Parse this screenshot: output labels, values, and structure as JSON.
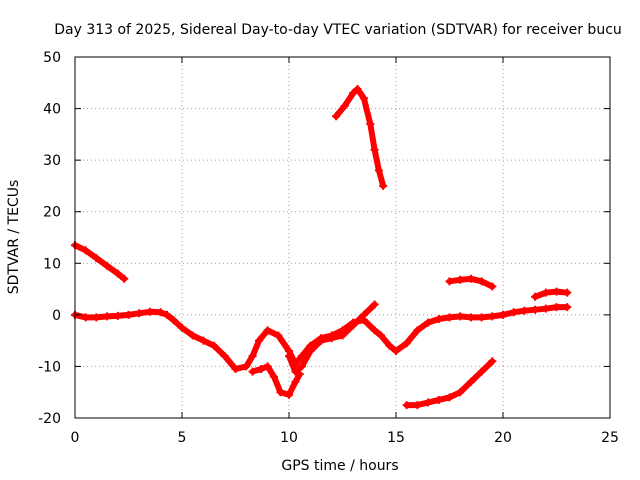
{
  "chart_data": {
    "type": "scatter",
    "title": "Day 313 of 2025, Sidereal Day-to-day VTEC variation (SDTVAR) for receiver bucu",
    "xlabel": "GPS time / hours",
    "ylabel": "SDTVAR / TECUs",
    "xlim": [
      0,
      25
    ],
    "ylim": [
      -20,
      50
    ],
    "xticks": [
      "0",
      "5",
      "10",
      "15",
      "20",
      "25"
    ],
    "yticks": [
      "-20",
      "-10",
      "0",
      "10",
      "20",
      "30",
      "40",
      "50"
    ],
    "grid": true,
    "color": "#ff0000",
    "series": [
      {
        "name": "seg-1",
        "points": [
          [
            0,
            13.5
          ],
          [
            0.5,
            12.5
          ],
          [
            1,
            11
          ],
          [
            1.5,
            9.5
          ],
          [
            2,
            8
          ],
          [
            2.3,
            7
          ]
        ]
      },
      {
        "name": "seg-2",
        "points": [
          [
            0,
            0
          ],
          [
            0.5,
            -0.5
          ],
          [
            1,
            -0.5
          ],
          [
            1.5,
            -0.3
          ],
          [
            2,
            -0.2
          ],
          [
            2.5,
            0
          ],
          [
            3,
            0.3
          ],
          [
            3.5,
            0.6
          ],
          [
            4,
            0.5
          ],
          [
            4.3,
            0
          ],
          [
            4.6,
            -1
          ],
          [
            5,
            -2.5
          ],
          [
            5.5,
            -4
          ],
          [
            6,
            -5
          ],
          [
            6.5,
            -6
          ],
          [
            7,
            -8
          ],
          [
            7.5,
            -10.5
          ],
          [
            8,
            -10
          ],
          [
            8.3,
            -8
          ],
          [
            8.6,
            -5
          ],
          [
            9,
            -3
          ],
          [
            9.5,
            -4
          ],
          [
            10,
            -7
          ],
          [
            10.3,
            -9.5
          ],
          [
            10.6,
            -8
          ],
          [
            11,
            -6
          ],
          [
            11.5,
            -4.5
          ],
          [
            12,
            -4
          ],
          [
            12.5,
            -3
          ],
          [
            13,
            -1.5
          ],
          [
            13.5,
            -1
          ],
          [
            14,
            -3
          ],
          [
            14.3,
            -4
          ],
          [
            14.7,
            -6
          ],
          [
            15,
            -7
          ],
          [
            15.5,
            -5.5
          ],
          [
            16,
            -3
          ],
          [
            16.5,
            -1.5
          ],
          [
            17,
            -0.8
          ],
          [
            17.5,
            -0.5
          ],
          [
            18,
            -0.3
          ],
          [
            18.5,
            -0.5
          ],
          [
            19,
            -0.5
          ],
          [
            19.5,
            -0.3
          ],
          [
            20,
            0
          ],
          [
            20.5,
            0.5
          ],
          [
            21,
            0.8
          ],
          [
            21.5,
            1
          ],
          [
            22,
            1.2
          ],
          [
            22.5,
            1.5
          ],
          [
            23,
            1.5
          ]
        ]
      },
      {
        "name": "seg-3",
        "points": [
          [
            8.3,
            -11
          ],
          [
            8.7,
            -10.5
          ],
          [
            9,
            -10
          ],
          [
            9.3,
            -12
          ],
          [
            9.6,
            -15
          ],
          [
            10,
            -15.5
          ],
          [
            10.3,
            -13
          ],
          [
            10.5,
            -11.5
          ]
        ]
      },
      {
        "name": "seg-4",
        "points": [
          [
            10,
            -8
          ],
          [
            10.3,
            -11
          ],
          [
            10.6,
            -10
          ],
          [
            11,
            -7
          ],
          [
            11.5,
            -5
          ],
          [
            12,
            -4.5
          ],
          [
            12.5,
            -4
          ],
          [
            13,
            -2
          ],
          [
            13.5,
            0
          ],
          [
            14,
            2
          ]
        ]
      },
      {
        "name": "seg-5",
        "points": [
          [
            12.2,
            38.5
          ],
          [
            12.6,
            40.5
          ],
          [
            13,
            43
          ],
          [
            13.2,
            43.8
          ],
          [
            13.5,
            42
          ],
          [
            13.8,
            37
          ],
          [
            14,
            32
          ],
          [
            14.2,
            28
          ],
          [
            14.4,
            25
          ]
        ]
      },
      {
        "name": "seg-6",
        "points": [
          [
            15.5,
            -17.5
          ],
          [
            16,
            -17.5
          ],
          [
            16.5,
            -17
          ],
          [
            17,
            -16.5
          ],
          [
            17.5,
            -16
          ],
          [
            18,
            -15
          ],
          [
            18.5,
            -13
          ],
          [
            19,
            -11
          ],
          [
            19.5,
            -9
          ]
        ]
      },
      {
        "name": "seg-7",
        "points": [
          [
            17.5,
            6.5
          ],
          [
            18,
            6.8
          ],
          [
            18.5,
            7
          ],
          [
            19,
            6.5
          ],
          [
            19.5,
            5.5
          ]
        ]
      },
      {
        "name": "seg-8",
        "points": [
          [
            21.5,
            3.5
          ],
          [
            22,
            4.3
          ],
          [
            22.5,
            4.5
          ],
          [
            23,
            4.3
          ]
        ]
      }
    ]
  }
}
